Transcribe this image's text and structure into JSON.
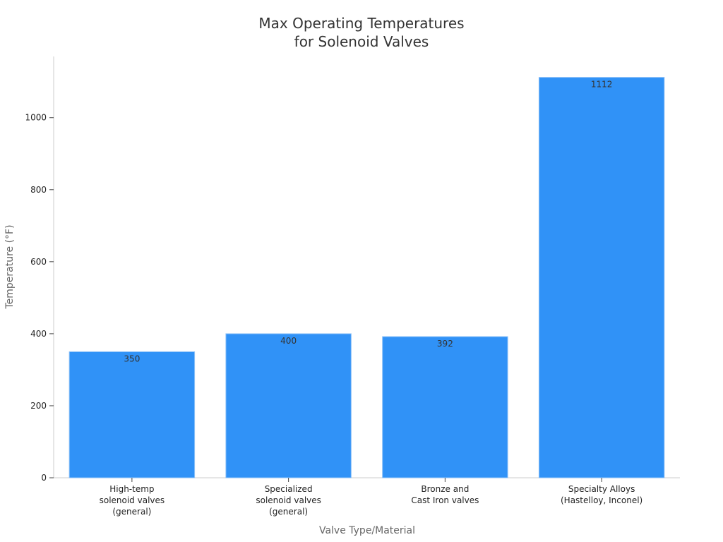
{
  "chart_data": {
    "type": "bar",
    "title": [
      "Max Operating Temperatures",
      "for Solenoid Valves"
    ],
    "xlabel": "Valve Type/Material",
    "ylabel": "Temperature (°F)",
    "categories": [
      [
        "High-temp",
        "solenoid valves",
        "(general)"
      ],
      [
        "Specialized",
        "solenoid valves",
        "(general)"
      ],
      [
        "Bronze and",
        "Cast Iron valves"
      ],
      [
        "Specialty Alloys",
        "(Hastelloy, Inconel)"
      ]
    ],
    "values": [
      350,
      400,
      392,
      1112
    ],
    "data_labels": [
      "350",
      "400",
      "392",
      "1112"
    ],
    "ylim": [
      0,
      1170
    ],
    "yticks": [
      0,
      200,
      400,
      600,
      800,
      1000
    ],
    "ytick_labels": [
      "0",
      "200",
      "400",
      "600",
      "800",
      "1000"
    ],
    "grid": false,
    "legend": "none",
    "bar_color": "#3092F7",
    "bar_edge_color": "#8EC1F7"
  }
}
